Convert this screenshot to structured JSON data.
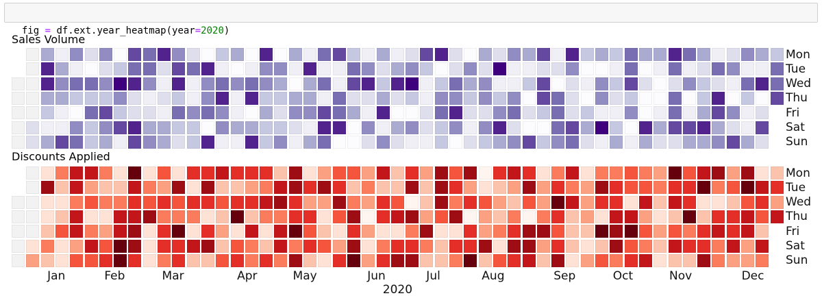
{
  "code_cell": {
    "full_text": "fig = df.ext.year_heatmap(year=2020)",
    "tokens": [
      {
        "text": "fig ",
        "type": "plain"
      },
      {
        "text": "=",
        "type": "operator"
      },
      {
        "text": " df.ext.year_heatmap(year",
        "type": "plain"
      },
      {
        "text": "=",
        "type": "operator"
      },
      {
        "text": "2020",
        "type": "number"
      },
      {
        "text": ")",
        "type": "plain"
      }
    ],
    "token_colors": {
      "operator": "#aa22ff",
      "number": "#008000",
      "plain": "#000000"
    }
  },
  "day_labels": [
    "Mon",
    "Tue",
    "Wed",
    "Thu",
    "Fri",
    "Sat",
    "Sun"
  ],
  "months": [
    {
      "label": "Jan",
      "x_col": 3.06
    },
    {
      "label": "Feb",
      "x_col": 7.06
    },
    {
      "label": "Mar",
      "x_col": 11.06
    },
    {
      "label": "Apr",
      "x_col": 16.14
    },
    {
      "label": "May",
      "x_col": 20.1
    },
    {
      "label": "Jun",
      "x_col": 25.0
    },
    {
      "label": "Jul",
      "x_col": 28.9
    },
    {
      "label": "Aug",
      "x_col": 33.0
    },
    {
      "label": "Sep",
      "x_col": 37.9
    },
    {
      "label": "Oct",
      "x_col": 41.9
    },
    {
      "label": "Nov",
      "x_col": 45.85
    },
    {
      "label": "Dec",
      "x_col": 50.8
    }
  ],
  "xlabel": "2020",
  "palette_colors": {
    "missing": "#f2f2f2",
    "purples": [
      "#fcfbfd",
      "#efedf5",
      "#dadaeb",
      "#bcbddc",
      "#9e9ac8",
      "#807dba",
      "#6a51a3",
      "#54278f",
      "#3f007d"
    ],
    "reds": [
      "#fff5f0",
      "#fee0d2",
      "#fcbba1",
      "#fc9272",
      "#fb6a4a",
      "#ef3b2c",
      "#cb181d",
      "#a50f15",
      "#67000d"
    ]
  },
  "chart_data": [
    {
      "type": "heatmap",
      "title": "Sales Volume",
      "colormap": "purples",
      "row_labels": [
        "Mon",
        "Tue",
        "Wed",
        "Thu",
        "Fri",
        "Sat",
        "Sun"
      ],
      "col_unit": "week of year 2020 (53 columns, Jan 1 2020 = Wednesday)",
      "value_scale": [
        0,
        9
      ],
      "encoding": "each week string = Mon..Sun; digit 0-9 = relative intensity, '.' = no data (whitesmoke), '-' = outside year",
      "weeks": [
        "--.....",
        ".....22",
        "4884314",
        "1454117",
        "5163056",
        "2063633",
        "5253754",
        "0395371",
        "7682287",
        "6651245",
        "8212144",
        "5783632",
        "2611533",
        "0855608",
        "3168551",
        "4051141",
        "0168048",
        "8553433",
        "0543235",
        "4104521",
        "1844514",
        "6161786",
        "7116680",
        "3672400",
        "1582152",
        "4234815",
        "1482042",
        "2593051",
        "7311221",
        "8035633",
        "2265850",
        "0543212",
        "4255253",
        "2913584",
        "5115625",
        "4130207",
        "7277303",
        "1206665",
        "8522276",
        "3010342",
        "4055191",
        "3132134",
        "6673501",
        "4020084",
        "4100142",
        "8626672",
        "6150174",
        "4233484",
        "1628745",
        "2510527",
        "5163114",
        "4180272",
        "3667---"
      ]
    },
    {
      "type": "heatmap",
      "title": "Discounts Applied",
      "colormap": "reds",
      "row_labels": [
        "Mon",
        "Tue",
        "Wed",
        "Thu",
        "Fri",
        "Sat",
        "Sun"
      ],
      "col_unit": "week of year 2020 (53 columns, Jan 1 2020 = Wednesday)",
      "value_scale": [
        0,
        9
      ],
      "encoding": "each week string = Mon..Sun; digit 0-9 = relative intensity, '.' = no data (whitesmoke), '-' = outside year",
      "weeks": [
        "--.....",
        ".....13",
        "1811242",
        "4212511",
        "7747735",
        "7351475",
        "4241356",
        "1247799",
        "9767886",
        "1458111",
        "5364664",
        "1854966",
        "6164172",
        "6861682",
        "7252325",
        "6269156",
        "6362744",
        "6474126",
        "2784774",
        "8866948",
        "1636562",
        "3831251",
        "5685136",
        "5248689",
        "3430313",
        "7266146",
        "2257168",
        "6808468",
        "3223842",
        "8885122",
        "5648164",
        "8360669",
        "0153382",
        "6232415",
        "7324686",
        "6850887",
        "1334832",
        "4696568",
        "7472221",
        "1333213",
        "4861925",
        "4667884",
        "5517956",
        "4573547",
        "3421321",
        "9672572",
        "5669462",
        "7912668",
        "8416744",
        "3526673",
        "8957733",
        "1765274",
        "2637---"
      ]
    }
  ]
}
